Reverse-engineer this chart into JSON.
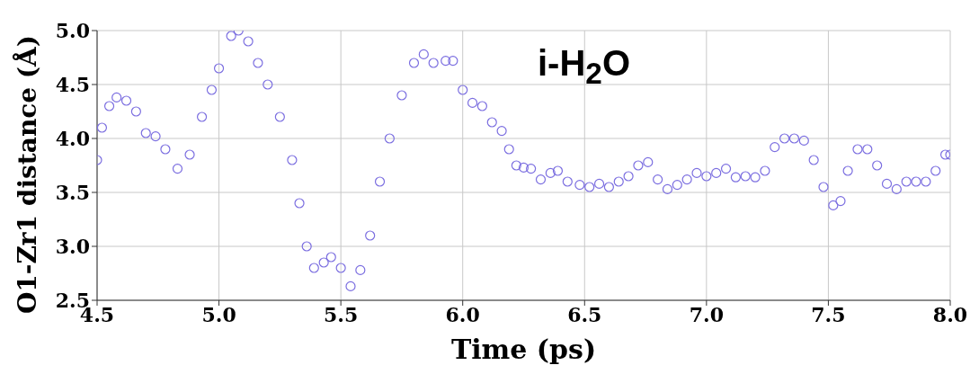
{
  "chart_data": {
    "type": "scatter",
    "xlabel": "Time (ps)",
    "ylabel": "O1-Zr1 distance (Å)",
    "annotations": [
      "i-H$_{2}$O"
    ],
    "xlim": [
      4.5,
      8.0
    ],
    "xticks": [
      4.5,
      {
        "value": 5,
        "label": "5.0"
      },
      5.5,
      {
        "value": 6,
        "label": "6.0"
      },
      6.5,
      {
        "value": 7,
        "label": "7.0"
      },
      7.5,
      {
        "value": 8,
        "label": "8.0"
      }
    ],
    "ylim": [
      2.5,
      5.0
    ],
    "yticks": [
      2.5,
      {
        "value": 3,
        "label": "3.0"
      },
      3.5,
      {
        "value": 4,
        "label": "4.0"
      },
      4.5,
      {
        "value": 5,
        "label": "5.0"
      }
    ],
    "grid": true,
    "marker": "circle",
    "series": [
      {
        "color": "#7b6ee0",
        "x": [
          4.5,
          4.52,
          4.55,
          4.58,
          4.62,
          4.66,
          4.7,
          4.74,
          4.78,
          4.83,
          4.88,
          4.93,
          4.97,
          5.0,
          5.05,
          5.08,
          5.12,
          5.16,
          5.2,
          5.25,
          5.3,
          5.33,
          5.36,
          5.39,
          5.43,
          5.46,
          5.5,
          5.54,
          5.58,
          5.62,
          5.66,
          5.7,
          5.75,
          5.8,
          5.84,
          5.88,
          5.93,
          5.96,
          6.0,
          6.04,
          6.08,
          6.12,
          6.16,
          6.19,
          6.22,
          6.25,
          6.28,
          6.32,
          6.36,
          6.39,
          6.43,
          6.48,
          6.52,
          6.56,
          6.6,
          6.64,
          6.68,
          6.72,
          6.76,
          6.8,
          6.84,
          6.88,
          6.92,
          6.96,
          7.0,
          7.04,
          7.08,
          7.12,
          7.16,
          7.2,
          7.24,
          7.28,
          7.32,
          7.36,
          7.4,
          7.44,
          7.48,
          7.52,
          7.55,
          7.58,
          7.62,
          7.66,
          7.7,
          7.74,
          7.78,
          7.82,
          7.86,
          7.9,
          7.94,
          7.98,
          8.0
        ],
        "values": [
          3.8,
          4.1,
          4.3,
          4.38,
          4.35,
          4.25,
          4.05,
          4.02,
          3.9,
          3.72,
          3.85,
          4.2,
          4.45,
          4.65,
          4.95,
          5.0,
          4.9,
          4.7,
          4.5,
          4.2,
          3.8,
          3.4,
          3.0,
          2.8,
          2.85,
          2.9,
          2.8,
          2.63,
          2.78,
          3.1,
          3.6,
          4.0,
          4.4,
          4.7,
          4.78,
          4.7,
          4.72,
          4.72,
          4.45,
          4.33,
          4.3,
          4.15,
          4.07,
          3.9,
          3.75,
          3.73,
          3.72,
          3.62,
          3.68,
          3.7,
          3.6,
          3.57,
          3.55,
          3.58,
          3.55,
          3.6,
          3.65,
          3.75,
          3.78,
          3.62,
          3.53,
          3.57,
          3.62,
          3.68,
          3.65,
          3.68,
          3.72,
          3.64,
          3.65,
          3.64,
          3.7,
          3.92,
          4.0,
          4.0,
          3.98,
          3.8,
          3.55,
          3.38,
          3.42,
          3.7,
          3.9,
          3.9,
          3.75,
          3.58,
          3.53,
          3.6,
          3.6,
          3.6,
          3.7,
          3.85,
          3.85
        ]
      }
    ]
  }
}
